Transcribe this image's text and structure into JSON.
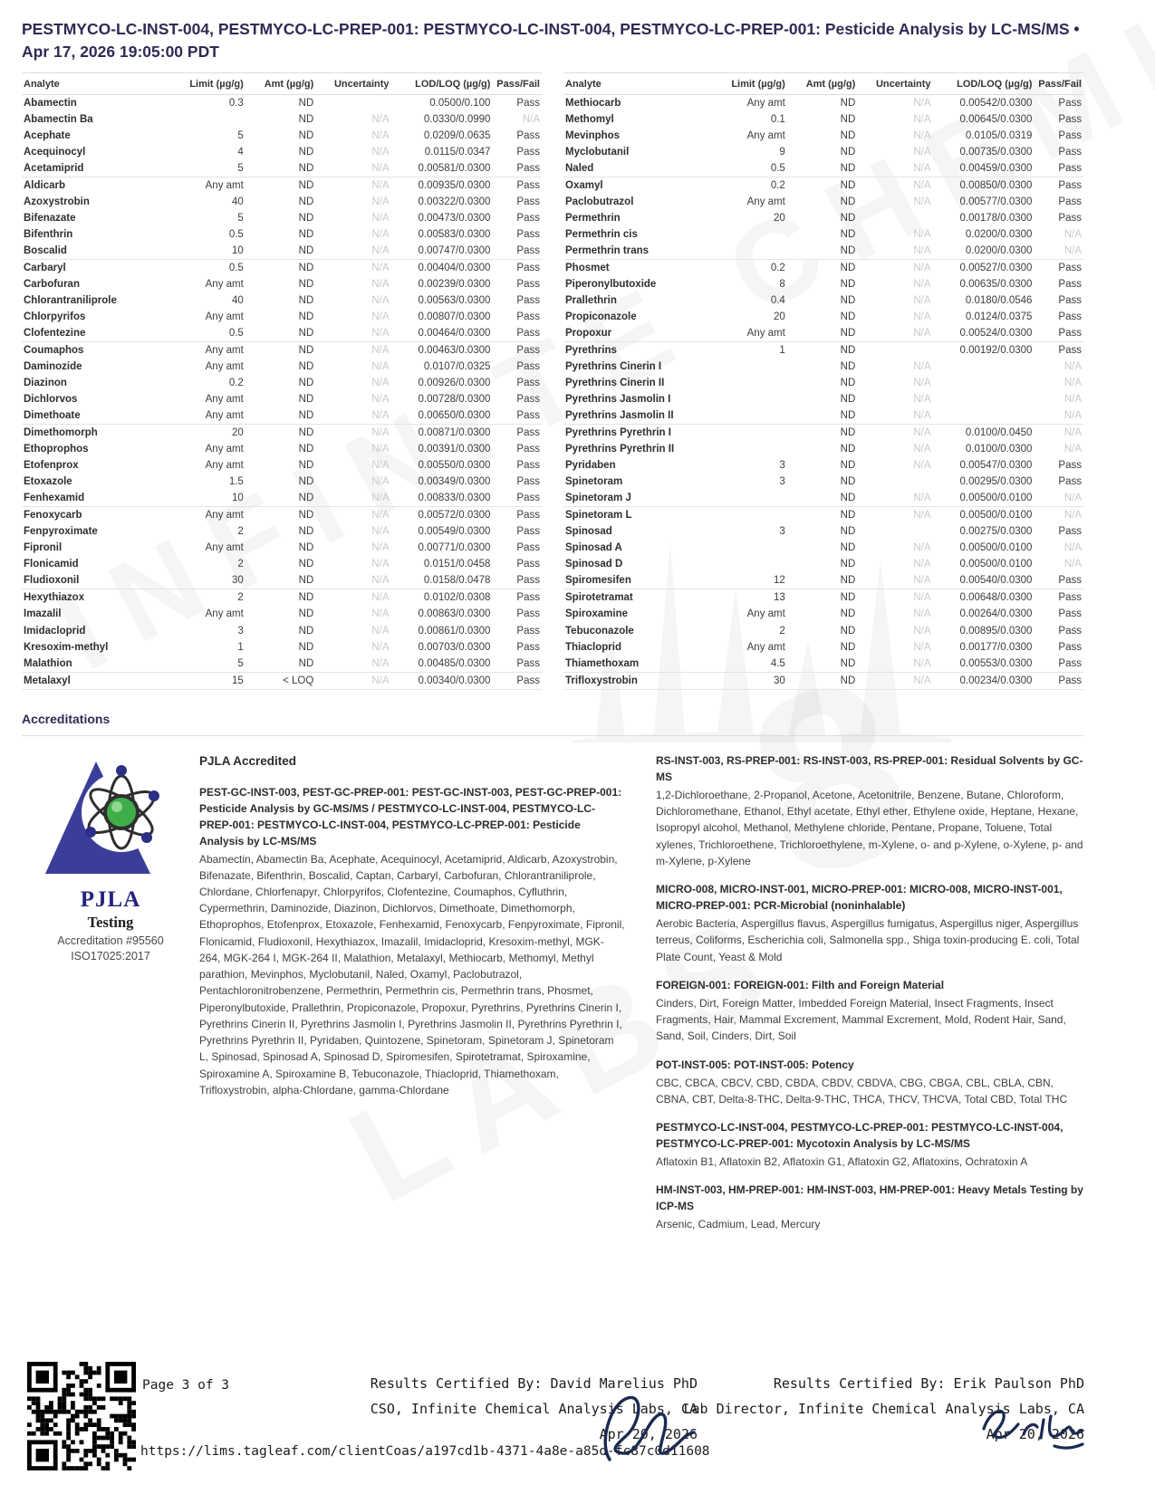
{
  "page": {
    "title": "PESTMYCO-LC-INST-004, PESTMYCO-LC-PREP-001: PESTMYCO-LC-INST-004, PESTMYCO-LC-PREP-001: Pesticide Analysis by LC-MS/MS • Apr 17, 2026 19:05:00 PDT"
  },
  "table": {
    "headers": [
      "Analyte",
      "Limit (µg/g)",
      "Amt (µg/g)",
      "Uncertainty",
      "LOD/LOQ (µg/g)",
      "Pass/Fail"
    ],
    "left_rows": [
      [
        "Abamectin",
        "0.3",
        "ND",
        "",
        "0.0500/0.100",
        "Pass"
      ],
      [
        "Abamectin Ba",
        "",
        "ND",
        "N/A",
        "0.0330/0.0990",
        "N/A"
      ],
      [
        "Acephate",
        "5",
        "ND",
        "N/A",
        "0.0209/0.0635",
        "Pass"
      ],
      [
        "Acequinocyl",
        "4",
        "ND",
        "N/A",
        "0.0115/0.0347",
        "Pass"
      ],
      [
        "Acetamiprid",
        "5",
        "ND",
        "N/A",
        "0.00581/0.0300",
        "Pass"
      ],
      [
        "Aldicarb",
        "Any amt",
        "ND",
        "N/A",
        "0.00935/0.0300",
        "Pass"
      ],
      [
        "Azoxystrobin",
        "40",
        "ND",
        "N/A",
        "0.00322/0.0300",
        "Pass"
      ],
      [
        "Bifenazate",
        "5",
        "ND",
        "N/A",
        "0.00473/0.0300",
        "Pass"
      ],
      [
        "Bifenthrin",
        "0.5",
        "ND",
        "N/A",
        "0.00583/0.0300",
        "Pass"
      ],
      [
        "Boscalid",
        "10",
        "ND",
        "N/A",
        "0.00747/0.0300",
        "Pass"
      ],
      [
        "Carbaryl",
        "0.5",
        "ND",
        "N/A",
        "0.00404/0.0300",
        "Pass"
      ],
      [
        "Carbofuran",
        "Any amt",
        "ND",
        "N/A",
        "0.00239/0.0300",
        "Pass"
      ],
      [
        "Chlorantraniliprole",
        "40",
        "ND",
        "N/A",
        "0.00563/0.0300",
        "Pass"
      ],
      [
        "Chlorpyrifos",
        "Any amt",
        "ND",
        "N/A",
        "0.00807/0.0300",
        "Pass"
      ],
      [
        "Clofentezine",
        "0.5",
        "ND",
        "N/A",
        "0.00464/0.0300",
        "Pass"
      ],
      [
        "Coumaphos",
        "Any amt",
        "ND",
        "N/A",
        "0.00463/0.0300",
        "Pass"
      ],
      [
        "Daminozide",
        "Any amt",
        "ND",
        "N/A",
        "0.0107/0.0325",
        "Pass"
      ],
      [
        "Diazinon",
        "0.2",
        "ND",
        "N/A",
        "0.00926/0.0300",
        "Pass"
      ],
      [
        "Dichlorvos",
        "Any amt",
        "ND",
        "N/A",
        "0.00728/0.0300",
        "Pass"
      ],
      [
        "Dimethoate",
        "Any amt",
        "ND",
        "N/A",
        "0.00650/0.0300",
        "Pass"
      ],
      [
        "Dimethomorph",
        "20",
        "ND",
        "N/A",
        "0.00871/0.0300",
        "Pass"
      ],
      [
        "Ethoprophos",
        "Any amt",
        "ND",
        "N/A",
        "0.00391/0.0300",
        "Pass"
      ],
      [
        "Etofenprox",
        "Any amt",
        "ND",
        "N/A",
        "0.00550/0.0300",
        "Pass"
      ],
      [
        "Etoxazole",
        "1.5",
        "ND",
        "N/A",
        "0.00349/0.0300",
        "Pass"
      ],
      [
        "Fenhexamid",
        "10",
        "ND",
        "N/A",
        "0.00833/0.0300",
        "Pass"
      ],
      [
        "Fenoxycarb",
        "Any amt",
        "ND",
        "N/A",
        "0.00572/0.0300",
        "Pass"
      ],
      [
        "Fenpyroximate",
        "2",
        "ND",
        "N/A",
        "0.00549/0.0300",
        "Pass"
      ],
      [
        "Fipronil",
        "Any amt",
        "ND",
        "N/A",
        "0.00771/0.0300",
        "Pass"
      ],
      [
        "Flonicamid",
        "2",
        "ND",
        "N/A",
        "0.0151/0.0458",
        "Pass"
      ],
      [
        "Fludioxonil",
        "30",
        "ND",
        "N/A",
        "0.0158/0.0478",
        "Pass"
      ],
      [
        "Hexythiazox",
        "2",
        "ND",
        "N/A",
        "0.0102/0.0308",
        "Pass"
      ],
      [
        "Imazalil",
        "Any amt",
        "ND",
        "N/A",
        "0.00863/0.0300",
        "Pass"
      ],
      [
        "Imidacloprid",
        "3",
        "ND",
        "N/A",
        "0.00861/0.0300",
        "Pass"
      ],
      [
        "Kresoxim-methyl",
        "1",
        "ND",
        "N/A",
        "0.00703/0.0300",
        "Pass"
      ],
      [
        "Malathion",
        "5",
        "ND",
        "N/A",
        "0.00485/0.0300",
        "Pass"
      ],
      [
        "Metalaxyl",
        "15",
        "< LOQ",
        "N/A",
        "0.00340/0.0300",
        "Pass"
      ]
    ],
    "right_rows": [
      [
        "Methiocarb",
        "Any amt",
        "ND",
        "N/A",
        "0.00542/0.0300",
        "Pass"
      ],
      [
        "Methomyl",
        "0.1",
        "ND",
        "N/A",
        "0.00645/0.0300",
        "Pass"
      ],
      [
        "Mevinphos",
        "Any amt",
        "ND",
        "N/A",
        "0.0105/0.0319",
        "Pass"
      ],
      [
        "Myclobutanil",
        "9",
        "ND",
        "N/A",
        "0.00735/0.0300",
        "Pass"
      ],
      [
        "Naled",
        "0.5",
        "ND",
        "N/A",
        "0.00459/0.0300",
        "Pass"
      ],
      [
        "Oxamyl",
        "0.2",
        "ND",
        "N/A",
        "0.00850/0.0300",
        "Pass"
      ],
      [
        "Paclobutrazol",
        "Any amt",
        "ND",
        "N/A",
        "0.00577/0.0300",
        "Pass"
      ],
      [
        "Permethrin",
        "20",
        "ND",
        "",
        "0.00178/0.0300",
        "Pass"
      ],
      [
        "Permethrin cis",
        "",
        "ND",
        "N/A",
        "0.0200/0.0300",
        "N/A"
      ],
      [
        "Permethrin trans",
        "",
        "ND",
        "N/A",
        "0.0200/0.0300",
        "N/A"
      ],
      [
        "Phosmet",
        "0.2",
        "ND",
        "N/A",
        "0.00527/0.0300",
        "Pass"
      ],
      [
        "Piperonylbutoxide",
        "8",
        "ND",
        "N/A",
        "0.00635/0.0300",
        "Pass"
      ],
      [
        "Prallethrin",
        "0.4",
        "ND",
        "N/A",
        "0.0180/0.0546",
        "Pass"
      ],
      [
        "Propiconazole",
        "20",
        "ND",
        "N/A",
        "0.0124/0.0375",
        "Pass"
      ],
      [
        "Propoxur",
        "Any amt",
        "ND",
        "N/A",
        "0.00524/0.0300",
        "Pass"
      ],
      [
        "Pyrethrins",
        "1",
        "ND",
        "",
        "0.00192/0.0300",
        "Pass"
      ],
      [
        "Pyrethrins Cinerin I",
        "",
        "ND",
        "N/A",
        "",
        "N/A"
      ],
      [
        "Pyrethrins Cinerin II",
        "",
        "ND",
        "N/A",
        "",
        "N/A"
      ],
      [
        "Pyrethrins Jasmolin I",
        "",
        "ND",
        "N/A",
        "",
        "N/A"
      ],
      [
        "Pyrethrins Jasmolin II",
        "",
        "ND",
        "N/A",
        "",
        "N/A"
      ],
      [
        "Pyrethrins Pyrethrin I",
        "",
        "ND",
        "N/A",
        "0.0100/0.0450",
        "N/A"
      ],
      [
        "Pyrethrins Pyrethrin II",
        "",
        "ND",
        "N/A",
        "0.0100/0.0300",
        "N/A"
      ],
      [
        "Pyridaben",
        "3",
        "ND",
        "N/A",
        "0.00547/0.0300",
        "Pass"
      ],
      [
        "Spinetoram",
        "3",
        "ND",
        "",
        "0.00295/0.0300",
        "Pass"
      ],
      [
        "Spinetoram J",
        "",
        "ND",
        "N/A",
        "0.00500/0.0100",
        "N/A"
      ],
      [
        "Spinetoram L",
        "",
        "ND",
        "N/A",
        "0.00500/0.0100",
        "N/A"
      ],
      [
        "Spinosad",
        "3",
        "ND",
        "",
        "0.00275/0.0300",
        "Pass"
      ],
      [
        "Spinosad A",
        "",
        "ND",
        "N/A",
        "0.00500/0.0100",
        "N/A"
      ],
      [
        "Spinosad D",
        "",
        "ND",
        "N/A",
        "0.00500/0.0100",
        "N/A"
      ],
      [
        "Spiromesifen",
        "12",
        "ND",
        "N/A",
        "0.00540/0.0300",
        "Pass"
      ],
      [
        "Spirotetramat",
        "13",
        "ND",
        "N/A",
        "0.00648/0.0300",
        "Pass"
      ],
      [
        "Spiroxamine",
        "Any amt",
        "ND",
        "N/A",
        "0.00264/0.0300",
        "Pass"
      ],
      [
        "Tebuconazole",
        "2",
        "ND",
        "N/A",
        "0.00895/0.0300",
        "Pass"
      ],
      [
        "Thiacloprid",
        "Any amt",
        "ND",
        "N/A",
        "0.00177/0.0300",
        "Pass"
      ],
      [
        "Thiamethoxam",
        "4.5",
        "ND",
        "N/A",
        "0.00553/0.0300",
        "Pass"
      ],
      [
        "Trifloxystrobin",
        "30",
        "ND",
        "N/A",
        "0.00234/0.0300",
        "Pass"
      ]
    ]
  },
  "accreditations": {
    "heading": "Accreditations",
    "pjla": {
      "name": "PJLA",
      "subtitle": "Testing",
      "accreditation": "Accreditation #95560",
      "iso": "ISO17025:2017"
    },
    "pjla_accredited_heading": "PJLA Accredited",
    "left_section": {
      "title": "PEST-GC-INST-003, PEST-GC-PREP-001: PEST-GC-INST-003, PEST-GC-PREP-001: Pesticide Analysis by GC-MS/MS / PESTMYCO-LC-INST-004, PESTMYCO-LC-PREP-001: PESTMYCO-LC-INST-004, PESTMYCO-LC-PREP-001: Pesticide Analysis by LC-MS/MS",
      "body": "Abamectin, Abamectin Ba, Acephate, Acequinocyl, Acetamiprid, Aldicarb, Azoxystrobin, Bifenazate, Bifenthrin, Boscalid, Captan, Carbaryl, Carbofuran, Chlorantraniliprole, Chlordane, Chlorfenapyr, Chlorpyrifos, Clofentezine, Coumaphos, Cyfluthrin, Cypermethrin, Daminozide, Diazinon, Dichlorvos, Dimethoate, Dimethomorph, Ethoprophos, Etofenprox, Etoxazole, Fenhexamid, Fenoxycarb, Fenpyroximate, Fipronil, Flonicamid, Fludioxonil, Hexythiazox, Imazalil, Imidacloprid, Kresoxim-methyl, MGK-264, MGK-264 I, MGK-264 II, Malathion, Metalaxyl, Methiocarb, Methomyl, Methyl parathion, Mevinphos, Myclobutanil, Naled, Oxamyl, Paclobutrazol, Pentachloronitrobenzene, Permethrin, Permethrin cis, Permethrin trans, Phosmet, Piperonylbutoxide, Prallethrin, Propiconazole, Propoxur, Pyrethrins, Pyrethrins Cinerin I, Pyrethrins Cinerin II, Pyrethrins Jasmolin I, Pyrethrins Jasmolin II, Pyrethrins Pyrethrin I, Pyrethrins Pyrethrin II, Pyridaben, Quintozene, Spinetoram, Spinetoram J, Spinetoram L, Spinosad, Spinosad A, Spinosad D, Spiromesifen, Spirotetramat, Spiroxamine, Spiroxamine A, Spiroxamine B, Tebuconazole, Thiacloprid, Thiamethoxam, Trifloxystrobin, alpha-Chlordane, gamma-Chlordane"
    },
    "sections": [
      {
        "title": "RS-INST-003, RS-PREP-001: RS-INST-003, RS-PREP-001: Residual Solvents by GC-MS",
        "body": "1,2-Dichloroethane, 2-Propanol, Acetone, Acetonitrile, Benzene, Butane, Chloroform, Dichloromethane, Ethanol, Ethyl acetate, Ethyl ether, Ethylene oxide, Heptane, Hexane, Isopropyl alcohol, Methanol, Methylene chloride, Pentane, Propane, Toluene, Total xylenes, Trichloroethene, Trichloroethylene, m-Xylene, o- and p-Xylene, o-Xylene, p- and m-Xylene, p-Xylene"
      },
      {
        "title": "MICRO-008, MICRO-INST-001, MICRO-PREP-001: MICRO-008, MICRO-INST-001, MICRO-PREP-001: PCR-Microbial (noninhalable)",
        "body": "Aerobic Bacteria, Aspergillus flavus, Aspergillus fumigatus, Aspergillus niger, Aspergillus terreus, Coliforms, Escherichia coli, Salmonella spp., Shiga toxin-producing E. coli, Total Plate Count, Yeast & Mold"
      },
      {
        "title": "FOREIGN-001: FOREIGN-001: Filth and Foreign Material",
        "body": "Cinders, Dirt, Foreign Matter, Imbedded Foreign Material, Insect Fragments, Insect Fragments, Hair, Mammal Excrement, Mammal Excrement, Mold, Rodent Hair, Sand, Sand, Soil, Cinders, Dirt, Soil"
      },
      {
        "title": "POT-INST-005: POT-INST-005: Potency",
        "body": "CBC, CBCA, CBCV, CBD, CBDA, CBDV, CBDVA, CBG, CBGA, CBL, CBLA, CBN, CBNA, CBT, Delta-8-THC, Delta-9-THC, THCA, THCV, THCVA, Total CBD, Total THC"
      },
      {
        "title": "PESTMYCO-LC-INST-004, PESTMYCO-LC-PREP-001: PESTMYCO-LC-INST-004, PESTMYCO-LC-PREP-001: Mycotoxin Analysis by LC-MS/MS",
        "body": "Aflatoxin B1, Aflatoxin B2, Aflatoxin G1, Aflatoxin G2, Aflatoxins, Ochratoxin A"
      },
      {
        "title": "HM-INST-003, HM-PREP-001: HM-INST-003, HM-PREP-001: Heavy Metals Testing by ICP-MS",
        "body": "Arsenic, Cadmium, Lead, Mercury"
      }
    ]
  },
  "footer": {
    "page_label": "Page 3 of 3",
    "certifier_left": {
      "line1": "Results Certified By: David Marelius PhD",
      "line2": "CSO, Infinite Chemical Analysis Labs, CA",
      "date": "Apr 20, 2026"
    },
    "certifier_right": {
      "line1": "Results Certified By: Erik Paulson PhD",
      "line2": "Lab Director, Infinite Chemical Analysis Labs, CA",
      "date": "Apr 20, 2026"
    },
    "url": "https://lims.tagleaf.com/clientCoas/a197cd1b-4371-4a8e-a85d-fc87c0d11608"
  },
  "watermark": {
    "line1": "INFINITE CHEMICAL",
    "line2": "LABS",
    "symbol": "8"
  },
  "colors": {
    "accent": "#2e2b55",
    "text": "#3d3d3d",
    "na_text": "#c9c9c9",
    "pjla_blue": "#3b3e99",
    "pjla_green": "#3fae4a",
    "signature": "#1b2a52"
  }
}
